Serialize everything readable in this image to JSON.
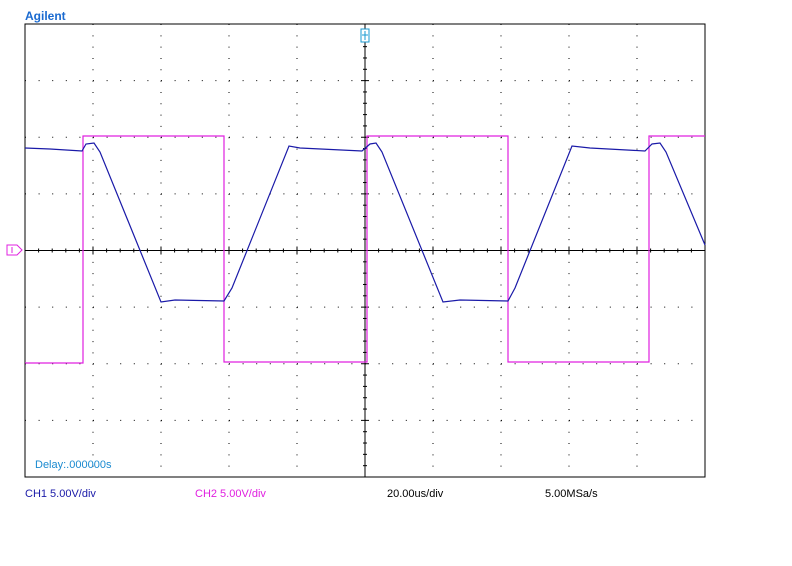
{
  "brand": "Agilent",
  "delay": "Delay:.000000s",
  "status": {
    "ch1": "CH1 5.00V/div",
    "ch2": "CH2 5.00V/div",
    "timebase": "20.00us/div",
    "sample_rate": "5.00MSa/s"
  }
}
